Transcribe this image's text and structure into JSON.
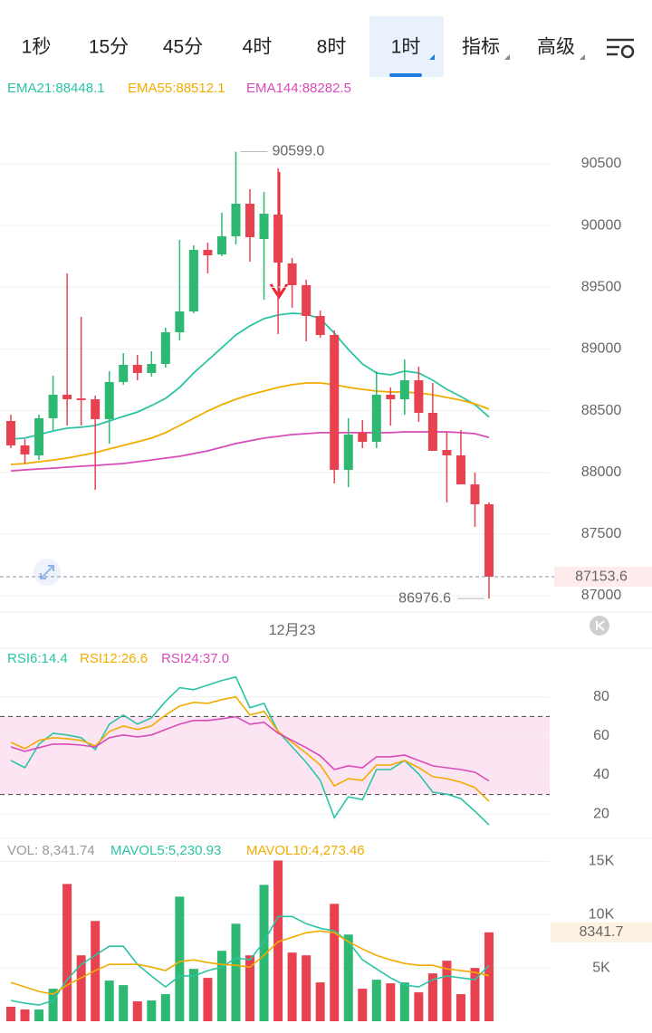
{
  "tabs": [
    {
      "label": "1秒"
    },
    {
      "label": "15分"
    },
    {
      "label": "45分"
    },
    {
      "label": "4时"
    },
    {
      "label": "8时"
    },
    {
      "label": "1时",
      "active": true,
      "dropdown": true
    },
    {
      "label": "指标",
      "dropdown": true
    },
    {
      "label": "高级",
      "dropdown": true
    }
  ],
  "chart_data": [
    {
      "type": "candlestick",
      "categories": [
        null,
        null,
        null,
        null,
        null,
        null,
        null,
        null,
        null,
        null,
        null,
        null,
        null,
        null,
        null,
        null,
        null,
        null,
        null,
        null,
        "12月23",
        null,
        null,
        null,
        null,
        null,
        null,
        null,
        null,
        null,
        null,
        null,
        null,
        null,
        null
      ],
      "open": [
        88416,
        88218,
        88137,
        88438,
        88629,
        88599,
        88592,
        88431,
        88732,
        88871,
        88805,
        88878,
        89135,
        89304,
        89803,
        89766,
        89913,
        90177,
        89891,
        90089,
        89693,
        89517,
        89267,
        89113,
        88020,
        88321,
        88247,
        88629,
        88592,
        88746,
        88482,
        88181,
        88137,
        87902,
        87741
      ],
      "close": [
        88218,
        88145,
        88438,
        88629,
        88592,
        88585,
        88431,
        88732,
        88871,
        88805,
        88878,
        89135,
        89304,
        89803,
        89759,
        89913,
        90177,
        89906,
        90096,
        89700,
        89517,
        89267,
        89113,
        88020,
        88306,
        88247,
        88629,
        88592,
        88746,
        88482,
        88174,
        88137,
        87902,
        87741,
        87153.6
      ],
      "high": [
        88467,
        88269,
        88467,
        88783,
        89612,
        89260,
        88621,
        88820,
        88966,
        88952,
        88981,
        89172,
        89884,
        89840,
        89862,
        90104,
        90599,
        90295,
        90273,
        90463,
        89737,
        89561,
        89311,
        89150,
        88438,
        88423,
        88820,
        88688,
        88915,
        88856,
        88724,
        88328,
        88343,
        87998,
        87756
      ],
      "low": [
        88196,
        88071,
        88100,
        88343,
        88379,
        88379,
        87858,
        88233,
        88710,
        88746,
        88776,
        88849,
        89069,
        89289,
        89612,
        89752,
        89847,
        89707,
        89399,
        89120,
        89333,
        89062,
        89091,
        87910,
        87880,
        88196,
        88196,
        88379,
        88467,
        88409,
        88174,
        87756,
        87902,
        87557,
        86976.6
      ],
      "up_color": "#2eb872",
      "down_color": "#e8414f",
      "series": [
        {
          "name": "EMA21:88448.1",
          "color": "#2bc4a4",
          "values": [
            88269,
            88277,
            88306,
            88335,
            88357,
            88365,
            88379,
            88416,
            88453,
            88489,
            88541,
            88599,
            88688,
            88805,
            88908,
            89010,
            89113,
            89187,
            89245,
            89275,
            89289,
            89282,
            89245,
            89128,
            88996,
            88878,
            88805,
            88790,
            88820,
            88805,
            88746,
            88673,
            88614,
            88548,
            88448.1
          ]
        },
        {
          "name": "EMA55:88512.1",
          "color": "#f0ac00",
          "values": [
            88064,
            88071,
            88086,
            88100,
            88115,
            88137,
            88159,
            88189,
            88218,
            88247,
            88277,
            88321,
            88379,
            88438,
            88497,
            88548,
            88592,
            88629,
            88658,
            88688,
            88710,
            88724,
            88724,
            88710,
            88688,
            88673,
            88658,
            88651,
            88651,
            88643,
            88629,
            88607,
            88585,
            88555,
            88512.1
          ]
        },
        {
          "name": "EMA144:88282.5",
          "color": "#d84bb8",
          "values": [
            88012,
            88020,
            88027,
            88034,
            88042,
            88049,
            88056,
            88064,
            88071,
            88086,
            88100,
            88115,
            88130,
            88152,
            88174,
            88203,
            88233,
            88255,
            88277,
            88291,
            88306,
            88313,
            88321,
            88321,
            88321,
            88321,
            88321,
            88321,
            88328,
            88328,
            88328,
            88328,
            88321,
            88313,
            88282.5
          ]
        }
      ],
      "ylim": [
        86875,
        91021
      ],
      "yticks": [
        87000,
        87500,
        88000,
        88500,
        89000,
        89500,
        90000,
        90500
      ],
      "grid": true,
      "annotations": [
        {
          "value": 90599.0,
          "label": "90599.0"
        },
        {
          "value": 86976.6,
          "label": "86976.6"
        }
      ],
      "last_price": {
        "value": 87153.6,
        "label": "87153.6"
      }
    },
    {
      "type": "line",
      "series": [
        {
          "name": "RSI6:14.4",
          "color": "#2bc4a4",
          "values": [
            47.4,
            43.7,
            55.8,
            61.4,
            60.5,
            59.1,
            53.0,
            66.0,
            70.7,
            66.0,
            69.3,
            77.7,
            84.7,
            83.7,
            86.0,
            88.4,
            90.2,
            74.4,
            76.7,
            62.3,
            54.4,
            46.5,
            37.2,
            18.1,
            28.8,
            27.4,
            42.8,
            42.8,
            47.4,
            40.5,
            31.2,
            30.2,
            27.9,
            21.4,
            14.4
          ]
        },
        {
          "name": "RSI12:26.6",
          "color": "#f0ac00",
          "values": [
            56.7,
            53.5,
            57.7,
            59.1,
            58.6,
            57.7,
            54.9,
            62.3,
            65.1,
            63.3,
            65.1,
            70.7,
            75.3,
            77.2,
            76.7,
            78.6,
            80.0,
            70.7,
            72.6,
            62.3,
            56.7,
            51.2,
            45.1,
            34.4,
            38.1,
            37.2,
            45.1,
            45.1,
            47.4,
            43.7,
            39.1,
            38.1,
            36.3,
            33.5,
            26.6
          ]
        },
        {
          "name": "RSI24:37.0",
          "color": "#d84bb8",
          "values": [
            54.4,
            52.1,
            54.0,
            55.8,
            55.8,
            55.3,
            54.4,
            59.1,
            60.5,
            59.5,
            60.5,
            63.3,
            66.0,
            67.9,
            67.9,
            68.8,
            69.8,
            66.0,
            67.0,
            61.4,
            57.7,
            54.0,
            49.8,
            42.8,
            44.7,
            43.7,
            49.3,
            49.3,
            50.2,
            47.4,
            44.7,
            43.7,
            42.8,
            41.4,
            37.0
          ]
        }
      ],
      "ylim": [
        8,
        104
      ],
      "yticks": [
        20,
        40,
        60,
        80
      ],
      "grid": true,
      "bands": [
        30,
        70
      ],
      "band_color": "#fde4f3"
    },
    {
      "type": "bar",
      "volume_label": "VOL: 8,341.74",
      "values": [
        1356,
        1102,
        1102,
        3051,
        12881,
        6186,
        9407,
        3814,
        3390,
        1864,
        1949,
        2542,
        11695,
        4915,
        4068,
        6610,
        9153,
        6186,
        12797,
        15085,
        6441,
        6186,
        3644,
        11017,
        8136,
        3051,
        3898,
        3559,
        3644,
        2712,
        4492,
        5678,
        2542,
        5000,
        8341.74
      ],
      "series": [
        {
          "name": "MAVOL5:5,230.93",
          "color": "#2bc4a4",
          "values": [
            1949,
            1695,
            1525,
            1949,
            3898,
            5339,
            6186,
            7034,
            7034,
            5339,
            4237,
            3220,
            4237,
            4237,
            4746,
            5085,
            5932,
            5763,
            7458,
            9831,
            9831,
            9153,
            8729,
            8475,
            7458,
            5763,
            4915,
            4068,
            3390,
            3220,
            3898,
            4237,
            4068,
            3898,
            5230.93
          ]
        },
        {
          "name": "MAVOL10:4,273.46",
          "color": "#f0ac00",
          "values": [
            3644,
            3220,
            2797,
            2542,
            3390,
            4068,
            4746,
            5339,
            5339,
            5339,
            5085,
            4746,
            5593,
            5763,
            5508,
            5339,
            5254,
            5085,
            6186,
            7458,
            7881,
            8305,
            8475,
            8305,
            7458,
            6780,
            6186,
            5763,
            5424,
            5254,
            5254,
            4915,
            4746,
            4576,
            4273.46
          ]
        }
      ],
      "ylim": [
        0,
        16400
      ],
      "yticks": [
        {
          "value": 5000,
          "label": "5K"
        },
        {
          "value": 10000,
          "label": "10K"
        },
        {
          "value": 15000,
          "label": "15K"
        }
      ],
      "grid": true,
      "last_value": {
        "value": 8341.74,
        "label": "8341.7"
      }
    }
  ]
}
